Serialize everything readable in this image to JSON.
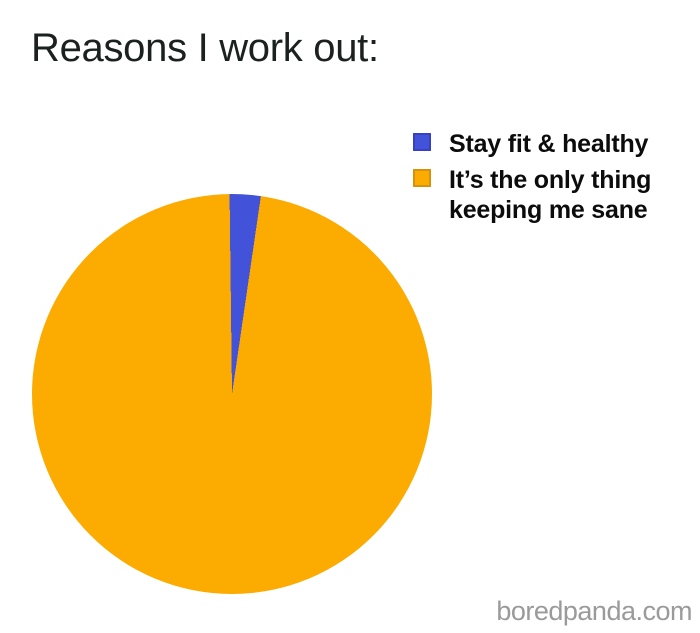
{
  "page": {
    "watermark": "boredpanda.com",
    "background": "#ffffff"
  },
  "chart_data": {
    "type": "pie",
    "title": "Reasons I work out:",
    "legend_position": "top-right",
    "start_angle_deg": -0.7,
    "slices": [
      {
        "label": "Stay fit & healthy",
        "value": 2.5,
        "color": "#4353d9",
        "swatch_border": "#3642c2"
      },
      {
        "label": "It’s the only thing keeping me sane",
        "value": 97.5,
        "color": "#fcab01",
        "swatch_border": "#d5920a"
      }
    ]
  }
}
